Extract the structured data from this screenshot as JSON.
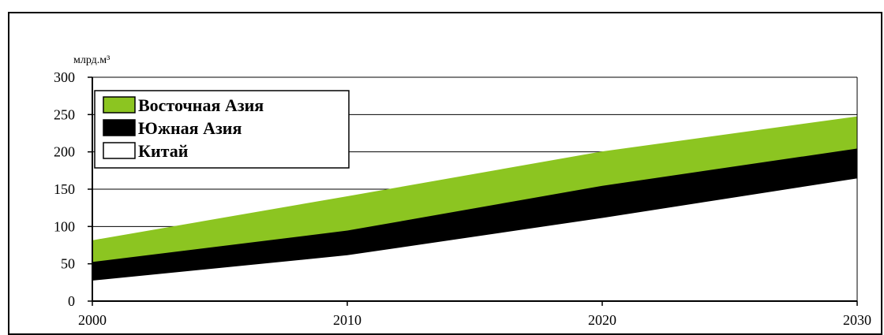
{
  "chart_data": {
    "type": "area",
    "stacked": true,
    "ylabel": "млрд.м³",
    "x": [
      2000,
      2010,
      2020,
      2030
    ],
    "x_ticks": [
      "2000",
      "2010",
      "2020",
      "2030"
    ],
    "ylim": [
      0,
      300
    ],
    "y_ticks": [
      "0",
      "50",
      "100",
      "150",
      "200",
      "250",
      "300"
    ],
    "grid": true,
    "legend_position": "top-left",
    "series": [
      {
        "name": "Китай",
        "color": "#ffffff",
        "values": [
          28,
          62,
          112,
          165
        ]
      },
      {
        "name": "Южная Азия",
        "color": "#000000",
        "values": [
          25,
          33,
          43,
          40
        ]
      },
      {
        "name": "Восточная Азия",
        "color": "#8cc521",
        "values": [
          28,
          45,
          45,
          42
        ]
      }
    ],
    "legend_order": [
      "Восточная Азия",
      "Южная Азия",
      "Китай"
    ]
  }
}
